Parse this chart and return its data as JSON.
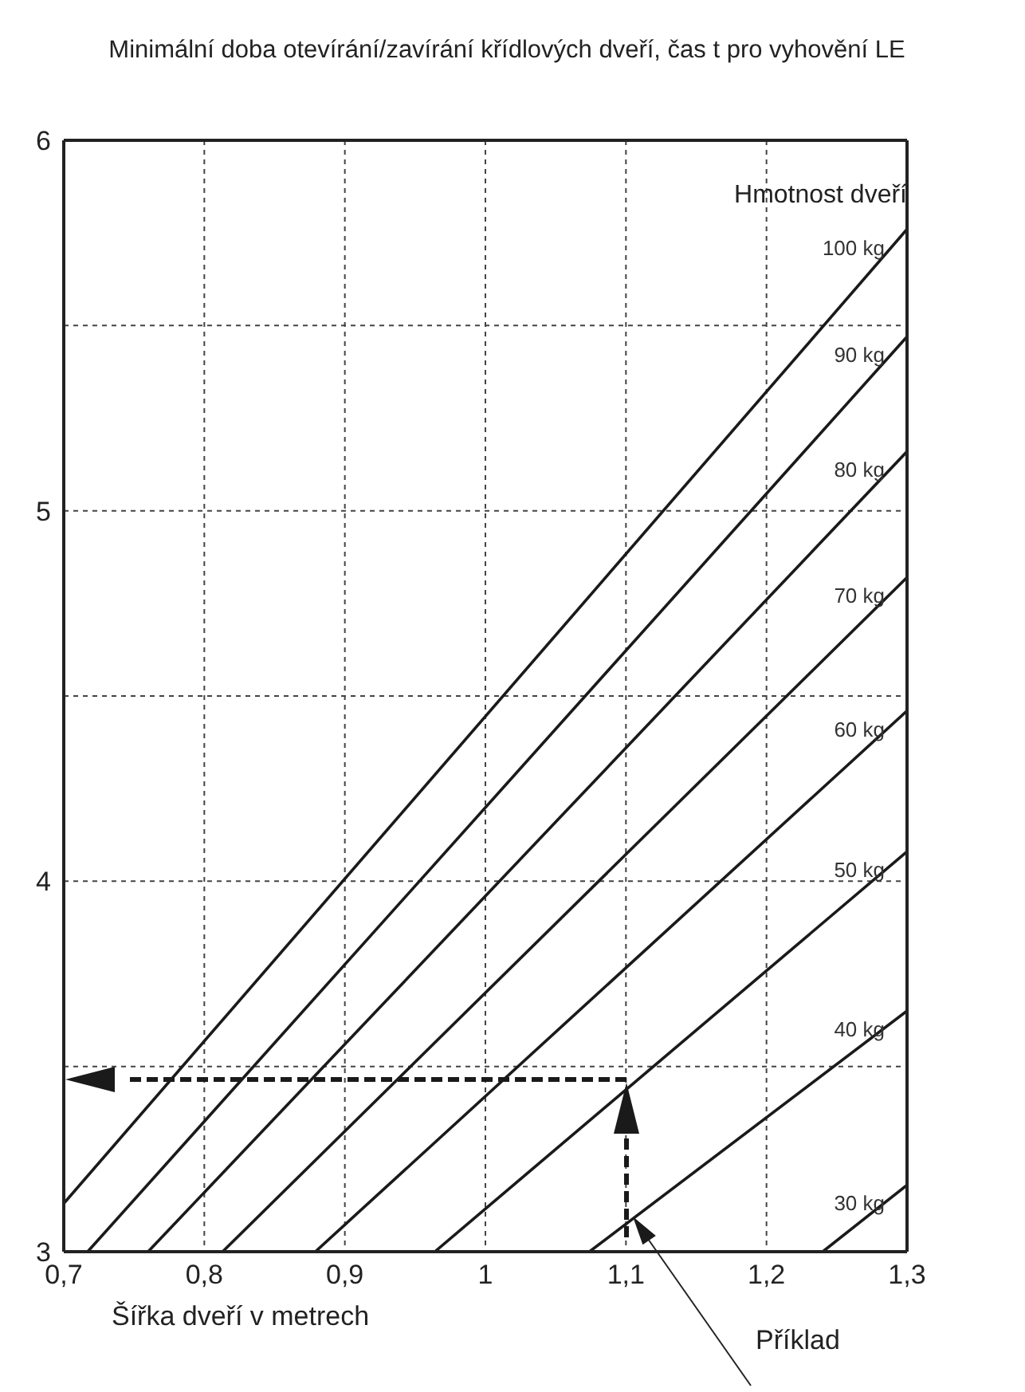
{
  "chart_data": {
    "type": "line",
    "title": "Minimální doba otevírání/zavírání křídlových dveří, čas t pro vyhovění LE",
    "xlabel": "Šířka dveří v metrech",
    "legend_title": "Hmotnost dveří",
    "xlim": [
      0.7,
      1.3
    ],
    "ylim": [
      3,
      6
    ],
    "xticks": [
      {
        "value": 0.7,
        "label": "0,7"
      },
      {
        "value": 0.8,
        "label": "0,8"
      },
      {
        "value": 0.9,
        "label": "0,9"
      },
      {
        "value": 1,
        "label": "1"
      },
      {
        "value": 1.1,
        "label": "1,1"
      },
      {
        "value": 1.2,
        "label": "1,2"
      },
      {
        "value": 1.3,
        "label": "1,3"
      }
    ],
    "yticks": [
      3,
      {
        "value": 3.5,
        "label": null
      },
      4,
      {
        "value": 4.5,
        "label": null
      },
      5,
      {
        "value": 5.5,
        "label": null
      },
      6
    ],
    "grid": true,
    "marker": "none",
    "series": [
      {
        "name": "100 kg",
        "color": "#1a1a1a",
        "x": [
          0.7,
          1.3
        ],
        "values": [
          3.13,
          5.76
        ]
      },
      {
        "name": "90 kg",
        "color": "#1a1a1a",
        "x": [
          0.717,
          1.3
        ],
        "values": [
          3,
          5.47
        ]
      },
      {
        "name": "80 kg",
        "color": "#1a1a1a",
        "x": [
          0.76,
          1.3
        ],
        "values": [
          3,
          5.16
        ]
      },
      {
        "name": "70 kg",
        "color": "#1a1a1a",
        "x": [
          0.813,
          1.3
        ],
        "values": [
          3,
          4.82
        ]
      },
      {
        "name": "60 kg",
        "color": "#1a1a1a",
        "x": [
          0.879,
          1.3
        ],
        "values": [
          3,
          4.46
        ]
      },
      {
        "name": "50 kg",
        "color": "#1a1a1a",
        "x": [
          0.964,
          1.3
        ],
        "values": [
          3,
          4.08
        ]
      },
      {
        "name": "40 kg",
        "color": "#1a1a1a",
        "x": [
          1.074,
          1.3
        ],
        "values": [
          3,
          3.65
        ]
      },
      {
        "name": "30 kg",
        "color": "#1a1a1a",
        "x": [
          1.24,
          1.3
        ],
        "values": [
          3,
          3.18
        ]
      }
    ],
    "annotations": [
      "Příklad"
    ]
  }
}
